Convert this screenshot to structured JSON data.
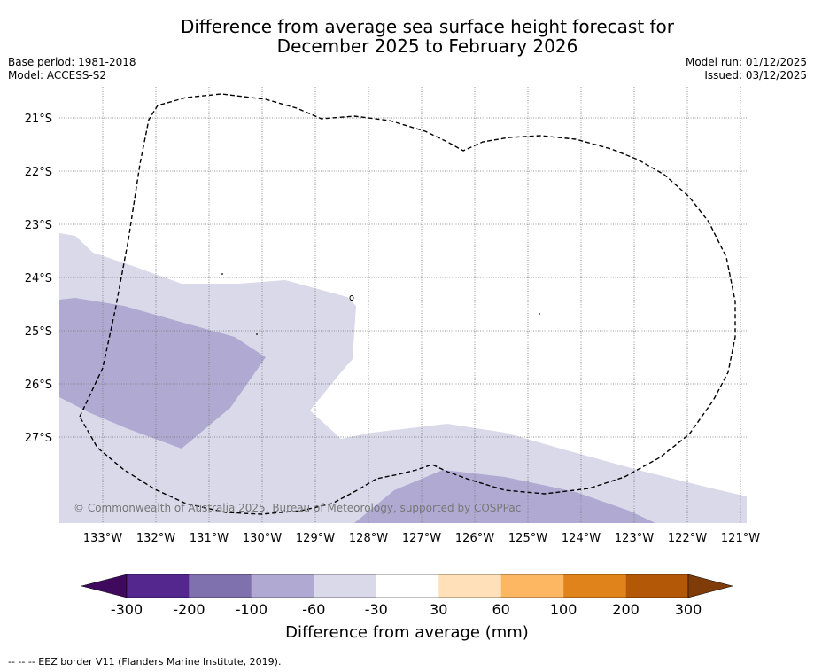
{
  "header": {
    "title_line1": "Difference from average sea surface height forecast for",
    "title_line2": "December 2025 to February 2026",
    "base_period": "Base period: 1981-2018",
    "model": "Model: ACCESS-S2",
    "model_run": "Model run: 01/12/2025",
    "issued": "Issued: 03/12/2025"
  },
  "map": {
    "lat_labels": [
      "21°S",
      "22°S",
      "23°S",
      "24°S",
      "25°S",
      "26°S",
      "27°S"
    ],
    "lon_labels": [
      "133°W",
      "132°W",
      "131°W",
      "130°W",
      "129°W",
      "128°W",
      "127°W",
      "126°W",
      "125°W",
      "124°W",
      "123°W",
      "122°W",
      "121°W"
    ],
    "copyright": "© Commonwealth of Australia 2025, Bureau of Meteorology, supported by COSPPac"
  },
  "colorbar": {
    "tick_labels": [
      "-300",
      "-200",
      "-100",
      "-60",
      "-30",
      "30",
      "60",
      "100",
      "200",
      "300"
    ],
    "colors": [
      "#3f0a5e",
      "#54278f",
      "#7f71ad",
      "#b0aad2",
      "#d9d9ea",
      "#ffffff",
      "#ffe0b8",
      "#fdb762",
      "#e1831b",
      "#b35807",
      "#7f3b08"
    ],
    "title": "Difference from average (mm)"
  },
  "footer": {
    "legend_text": "--  --  -- EEZ border V11 (Flanders Marine Institute, 2019)."
  }
}
